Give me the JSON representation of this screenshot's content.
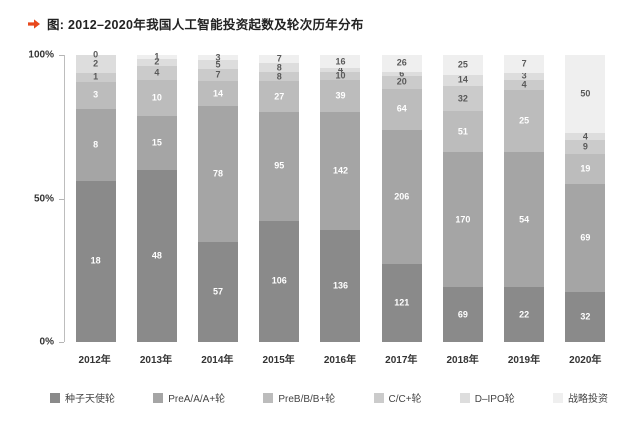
{
  "header": {
    "title": "图: 2012–2020年我国人工智能投资起数及轮次历年分布"
  },
  "chart_data": {
    "type": "bar",
    "subtype": "stacked-100-percent",
    "title": "图: 2012–2020年我国人工智能投资起数及轮次历年分布",
    "categories": [
      "2012年",
      "2013年",
      "2014年",
      "2015年",
      "2016年",
      "2017年",
      "2018年",
      "2019年",
      "2020年"
    ],
    "series": [
      {
        "name": "种子天使轮",
        "color": "#8a8a8a",
        "label_color": "#ffffff",
        "values": [
          18,
          48,
          57,
          106,
          136,
          121,
          69,
          22,
          32
        ]
      },
      {
        "name": "PreA/A/A+轮",
        "color": "#a5a5a5",
        "label_color": "#ffffff",
        "values": [
          8,
          15,
          78,
          95,
          142,
          206,
          170,
          54,
          69
        ]
      },
      {
        "name": "PreB/B/B+轮",
        "color": "#bcbcbc",
        "label_color": "#ffffff",
        "values": [
          3,
          10,
          14,
          27,
          39,
          64,
          51,
          25,
          19
        ]
      },
      {
        "name": "C/C+轮",
        "color": "#cbcbcb",
        "label_color": "#595959",
        "values": [
          1,
          4,
          7,
          8,
          10,
          20,
          32,
          4,
          9
        ]
      },
      {
        "name": "D–IPO轮",
        "color": "#dddddd",
        "label_color": "#595959",
        "values": [
          2,
          2,
          5,
          8,
          4,
          6,
          14,
          3,
          4
        ]
      },
      {
        "name": "战略投资",
        "color": "#efefef",
        "label_color": "#595959",
        "values": [
          0,
          1,
          3,
          7,
          16,
          26,
          25,
          7,
          50
        ]
      }
    ],
    "y_axis": {
      "ticks": [
        "100%",
        "50%",
        "0%"
      ],
      "min": 0,
      "max": 100,
      "unit": "%"
    },
    "x_axis_label": "",
    "legend_position": "bottom",
    "grid": false,
    "accent_color": "#e8481c"
  }
}
